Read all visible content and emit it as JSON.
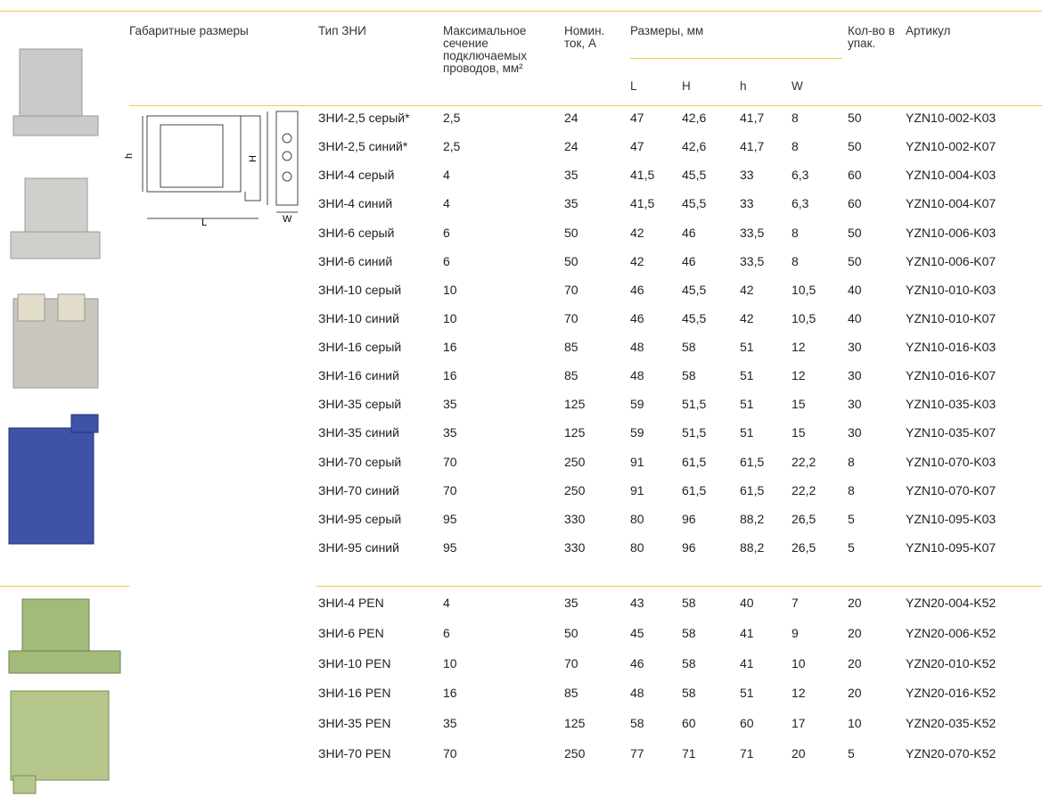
{
  "table": {
    "headers": {
      "dimensions": "Габаритные размеры",
      "type": "Тип ЗНИ",
      "section": "Максимальное сечение подключаемых проводов, мм²",
      "current": "Номин. ток, А",
      "sizes": "Размеры, мм",
      "L": "L",
      "H": "H",
      "h": "h",
      "W": "W",
      "qty": "Кол-во в упак.",
      "article": "Артикул"
    },
    "rows": [
      [
        "ЗНИ-2,5 серый*",
        "2,5",
        "24",
        "47",
        "42,6",
        "41,7",
        "8",
        "50",
        "YZN10-002-K03"
      ],
      [
        "ЗНИ-2,5 синий*",
        "2,5",
        "24",
        "47",
        "42,6",
        "41,7",
        "8",
        "50",
        "YZN10-002-K07"
      ],
      [
        "ЗНИ-4 серый",
        "4",
        "35",
        "41,5",
        "45,5",
        "33",
        "6,3",
        "60",
        "YZN10-004-K03"
      ],
      [
        "ЗНИ-4 синий",
        "4",
        "35",
        "41,5",
        "45,5",
        "33",
        "6,3",
        "60",
        "YZN10-004-K07"
      ],
      [
        "ЗНИ-6 серый",
        "6",
        "50",
        "42",
        "46",
        "33,5",
        "8",
        "50",
        "YZN10-006-K03"
      ],
      [
        "ЗНИ-6 синий",
        "6",
        "50",
        "42",
        "46",
        "33,5",
        "8",
        "50",
        "YZN10-006-K07"
      ],
      [
        "ЗНИ-10 серый",
        "10",
        "70",
        "46",
        "45,5",
        "42",
        "10,5",
        "40",
        "YZN10-010-K03"
      ],
      [
        "ЗНИ-10 синий",
        "10",
        "70",
        "46",
        "45,5",
        "42",
        "10,5",
        "40",
        "YZN10-010-K07"
      ],
      [
        "ЗНИ-16 серый",
        "16",
        "85",
        "48",
        "58",
        "51",
        "12",
        "30",
        "YZN10-016-K03"
      ],
      [
        "ЗНИ-16 синий",
        "16",
        "85",
        "48",
        "58",
        "51",
        "12",
        "30",
        "YZN10-016-K07"
      ],
      [
        "ЗНИ-35 серый",
        "35",
        "125",
        "59",
        "51,5",
        "51",
        "15",
        "30",
        "YZN10-035-K03"
      ],
      [
        "ЗНИ-35 синий",
        "35",
        "125",
        "59",
        "51,5",
        "51",
        "15",
        "30",
        "YZN10-035-K07"
      ],
      [
        "ЗНИ-70 серый",
        "70",
        "250",
        "91",
        "61,5",
        "61,5",
        "22,2",
        "8",
        "YZN10-070-K03"
      ],
      [
        "ЗНИ-70 синий",
        "70",
        "250",
        "91",
        "61,5",
        "61,5",
        "22,2",
        "8",
        "YZN10-070-K07"
      ],
      [
        "ЗНИ-95 серый",
        "95",
        "330",
        "80",
        "96",
        "88,2",
        "26,5",
        "5",
        "YZN10-095-K03"
      ],
      [
        "ЗНИ-95 синий",
        "95",
        "330",
        "80",
        "96",
        "88,2",
        "26,5",
        "5",
        "YZN10-095-K07"
      ],
      [
        "ЗНИ-4 PEN",
        "4",
        "35",
        "43",
        "58",
        "40",
        "7",
        "20",
        "YZN20-004-K52"
      ],
      [
        "ЗНИ-6 PEN",
        "6",
        "50",
        "45",
        "58",
        "41",
        "9",
        "20",
        "YZN20-006-K52"
      ],
      [
        "ЗНИ-10 PEN",
        "10",
        "70",
        "46",
        "58",
        "41",
        "10",
        "20",
        "YZN20-010-K52"
      ],
      [
        "ЗНИ-16 PEN",
        "16",
        "85",
        "48",
        "58",
        "51",
        "12",
        "20",
        "YZN20-016-K52"
      ],
      [
        "ЗНИ-35 PEN",
        "35",
        "125",
        "58",
        "60",
        "60",
        "17",
        "10",
        "YZN20-035-K52"
      ],
      [
        "ЗНИ-70 PEN",
        "70",
        "250",
        "77",
        "71",
        "71",
        "20",
        "5",
        "YZN20-070-K52"
      ]
    ]
  },
  "diagram": {
    "labels": [
      "h",
      "H",
      "L",
      "W"
    ]
  }
}
